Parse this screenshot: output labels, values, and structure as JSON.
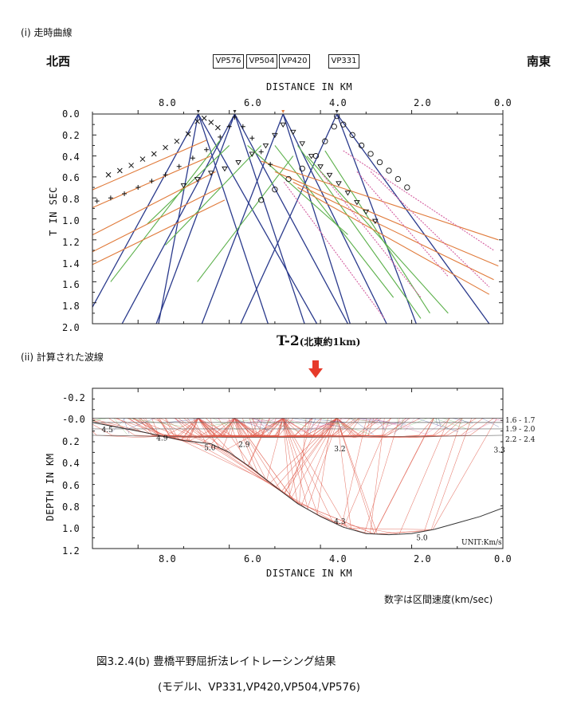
{
  "section1_label": "(i)  走時曲線",
  "section2_label": "(ii)  計算された波線",
  "direction_left": "北西",
  "direction_right": "南東",
  "vp_labels": [
    "VP576",
    "VP504",
    "VP420",
    "VP331"
  ],
  "profile_title": "T-2",
  "profile_subtitle": "(北東約1km)",
  "x_axis_title": "DISTANCE  IN  KM",
  "note_velocity": "数字は区間速度(km/sec)",
  "unit_label": "UNIT:Km/s",
  "figure_caption_line1": "図3.2.4(b)  豊橋平野屈折法レイトレーシング結果",
  "figure_caption_line2": "(モデルⅠ、VP331,VP420,VP504,VP576)",
  "colors": {
    "direct_blue": "#2a3a8c",
    "refr_green": "#5bb04a",
    "refr_orange": "#e07a3a",
    "refr_pink": "#d45fa0",
    "ray_red": "#e05a4a",
    "arrow_red": "#e63a2a"
  },
  "chart_data": [
    {
      "type": "line",
      "title": "",
      "xlabel": "DISTANCE  IN  KM",
      "ylabel": "T  IN  SEC",
      "xlim": [
        9.0,
        0.0
      ],
      "ylim": [
        2.0,
        0.0
      ],
      "xticks": [
        "8.0",
        "6.0",
        "4.0",
        "2.0",
        "0.0"
      ],
      "yticks": [
        "0.0",
        "0.2",
        "0.4",
        "0.6",
        "0.8",
        "1.0",
        "1.2",
        "1.4",
        "1.6",
        "1.8",
        "2.0"
      ],
      "shots_km": [
        6.68,
        5.88,
        4.82,
        3.64
      ],
      "series": [
        {
          "group": "direct",
          "lines": [
            {
              "x": [
                6.68,
                9.2
              ],
              "y": [
                0.0,
                2.0
              ]
            },
            {
              "x": [
                6.68,
                7.55
              ],
              "y": [
                0.0,
                2.0
              ]
            },
            {
              "x": [
                6.68,
                4.08
              ],
              "y": [
                0.0,
                2.0
              ]
            },
            {
              "x": [
                6.68,
                5.15
              ],
              "y": [
                0.0,
                2.0
              ]
            },
            {
              "x": [
                5.88,
                7.6
              ],
              "y": [
                0.0,
                2.0
              ]
            },
            {
              "x": [
                5.88,
                8.35
              ],
              "y": [
                0.0,
                2.0
              ]
            },
            {
              "x": [
                5.88,
                3.4
              ],
              "y": [
                0.0,
                2.0
              ]
            },
            {
              "x": [
                5.88,
                4.35
              ],
              "y": [
                0.0,
                2.0
              ]
            },
            {
              "x": [
                4.82,
                6.6
              ],
              "y": [
                0.0,
                2.0
              ]
            },
            {
              "x": [
                4.82,
                2.55
              ],
              "y": [
                0.0,
                2.0
              ]
            },
            {
              "x": [
                4.82,
                3.35
              ],
              "y": [
                0.0,
                2.0
              ]
            },
            {
              "x": [
                3.64,
                5.75
              ],
              "y": [
                0.0,
                2.0
              ]
            },
            {
              "x": [
                3.64,
                1.9
              ],
              "y": [
                0.0,
                2.0
              ]
            },
            {
              "x": [
                3.64,
                0.3
              ],
              "y": [
                0.0,
                2.0
              ]
            }
          ]
        },
        {
          "group": "refraction",
          "lines": [
            {
              "x": [
                6.2,
                8.6
              ],
              "y": [
                0.25,
                1.6
              ]
            },
            {
              "x": [
                6.0,
                7.8
              ],
              "y": [
                0.3,
                1.05
              ]
            },
            {
              "x": [
                5.3,
                7.4
              ],
              "y": [
                0.3,
                1.25
              ]
            },
            {
              "x": [
                5.6,
                3.4
              ],
              "y": [
                0.3,
                1.15
              ]
            },
            {
              "x": [
                5.0,
                2.4
              ],
              "y": [
                0.3,
                1.75
              ]
            },
            {
              "x": [
                4.5,
                1.8
              ],
              "y": [
                0.3,
                1.95
              ]
            },
            {
              "x": [
                4.6,
                6.7
              ],
              "y": [
                0.4,
                1.6
              ]
            },
            {
              "x": [
                3.9,
                1.6
              ],
              "y": [
                0.35,
                1.9
              ]
            },
            {
              "x": [
                4.3,
                1.2
              ],
              "y": [
                0.4,
                1.9
              ]
            }
          ]
        },
        {
          "group": "refraction",
          "lines": [
            {
              "x": [
                6.5,
                9.3
              ],
              "y": [
                0.25,
                0.78
              ]
            },
            {
              "x": [
                6.4,
                9.3
              ],
              "y": [
                0.4,
                0.95
              ]
            },
            {
              "x": [
                6.3,
                9.3
              ],
              "y": [
                0.55,
                1.22
              ]
            },
            {
              "x": [
                6.2,
                9.3
              ],
              "y": [
                0.7,
                1.38
              ]
            },
            {
              "x": [
                6.1,
                9.3
              ],
              "y": [
                0.82,
                1.5
              ]
            },
            {
              "x": [
                5.3,
                0.1
              ],
              "y": [
                0.45,
                1.2
              ]
            },
            {
              "x": [
                5.0,
                0.1
              ],
              "y": [
                0.55,
                1.45
              ]
            },
            {
              "x": [
                4.6,
                0.2
              ],
              "y": [
                0.65,
                1.58
              ]
            },
            {
              "x": [
                4.5,
                0.3
              ],
              "y": [
                0.7,
                1.72
              ]
            }
          ]
        },
        {
          "group": "refraction",
          "lines": [
            {
              "x": [
                3.5,
                0.2
              ],
              "y": [
                0.35,
                1.3
              ]
            },
            {
              "x": [
                3.2,
                1.2
              ],
              "y": [
                0.55,
                1.55
              ]
            },
            {
              "x": [
                2.9,
                0.3
              ],
              "y": [
                0.55,
                1.65
              ]
            },
            {
              "x": [
                4.0,
                1.8
              ],
              "y": [
                0.55,
                1.75
              ]
            },
            {
              "x": [
                4.8,
                2.6
              ],
              "y": [
                0.65,
                1.95
              ]
            }
          ]
        },
        {
          "group": "observed",
          "lines": [
            {
              "x": [
                8.65,
                8.4,
                8.15,
                7.9,
                7.65,
                7.4,
                7.15,
                6.9,
                6.7,
                6.55,
                6.4,
                6.25
              ],
              "y": [
                0.58,
                0.54,
                0.49,
                0.43,
                0.38,
                0.32,
                0.26,
                0.19,
                0.07,
                0.04,
                0.08,
                0.13
              ]
            },
            {
              "x": [
                8.9,
                8.6,
                8.3,
                8.0,
                7.7,
                7.4,
                7.1,
                6.8,
                6.5,
                6.2,
                6.0,
                5.88,
                5.7,
                5.5,
                5.3,
                5.1
              ],
              "y": [
                0.83,
                0.8,
                0.76,
                0.7,
                0.64,
                0.58,
                0.5,
                0.42,
                0.34,
                0.22,
                0.12,
                0.03,
                0.12,
                0.23,
                0.36,
                0.48
              ]
            },
            {
              "x": [
                7.0,
                6.7,
                6.4,
                6.1,
                5.8,
                5.5,
                5.2,
                5.0,
                4.82,
                4.6,
                4.4,
                4.2,
                4.0,
                3.8,
                3.6,
                3.4,
                3.2,
                3.0,
                2.8
              ],
              "y": [
                0.68,
                0.62,
                0.56,
                0.52,
                0.46,
                0.38,
                0.3,
                0.2,
                0.1,
                0.17,
                0.28,
                0.4,
                0.5,
                0.58,
                0.66,
                0.75,
                0.84,
                0.93,
                1.02
              ]
            },
            {
              "x": [
                5.3,
                5.0,
                4.7,
                4.4,
                4.1,
                3.9,
                3.7,
                3.64,
                3.5,
                3.3,
                3.1,
                2.9,
                2.7,
                2.5,
                2.3,
                2.1
              ],
              "y": [
                0.82,
                0.72,
                0.62,
                0.52,
                0.4,
                0.26,
                0.12,
                0.02,
                0.1,
                0.2,
                0.3,
                0.38,
                0.46,
                0.54,
                0.62,
                0.7
              ]
            }
          ]
        }
      ]
    },
    {
      "type": "line",
      "title": "",
      "xlabel": "DISTANCE  IN  KM",
      "ylabel": "DEPTH  IN  KM",
      "xlim": [
        9.0,
        0.0
      ],
      "ylim": [
        1.2,
        -0.3
      ],
      "xticks": [
        "8.0",
        "6.0",
        "4.0",
        "2.0",
        "0.0"
      ],
      "yticks": [
        "-0.2",
        "-0.0",
        "0.2",
        "0.4",
        "0.6",
        "0.8",
        "1.0",
        "1.2"
      ],
      "interfaces": [
        {
          "name": "layer1-base",
          "x": [
            9.0,
            0.0
          ],
          "y": [
            0.02,
            0.02
          ]
        },
        {
          "name": "layer2-base",
          "x": [
            9.0,
            0.0
          ],
          "y": [
            0.08,
            0.08
          ]
        },
        {
          "name": "layer3-base",
          "x": [
            9.0,
            7.5,
            6.0,
            4.5,
            3.0,
            1.5,
            0.0
          ],
          "y": [
            0.14,
            0.15,
            0.16,
            0.16,
            0.15,
            0.15,
            0.14
          ]
        },
        {
          "name": "basement",
          "x": [
            9.0,
            8.0,
            7.0,
            6.4,
            6.0,
            5.5,
            5.0,
            4.5,
            4.0,
            3.5,
            3.0,
            2.5,
            2.0,
            1.5,
            1.0,
            0.5,
            0.0
          ],
          "y": [
            0.02,
            0.1,
            0.19,
            0.22,
            0.3,
            0.45,
            0.62,
            0.78,
            0.9,
            1.0,
            1.06,
            1.07,
            1.06,
            1.02,
            0.96,
            0.9,
            0.82
          ]
        }
      ],
      "velocity_labels": [
        {
          "text": "4.5",
          "x": 8.8,
          "y": 0.11
        },
        {
          "text": "4.9",
          "x": 7.6,
          "y": 0.19
        },
        {
          "text": "5.0",
          "x": 6.55,
          "y": 0.28
        },
        {
          "text": "2.9",
          "x": 5.8,
          "y": 0.25
        },
        {
          "text": "3.2",
          "x": 3.7,
          "y": 0.29
        },
        {
          "text": "3.3",
          "x": 0.2,
          "y": 0.3
        },
        {
          "text": "4.3",
          "x": 3.7,
          "y": 0.97
        },
        {
          "text": "5.0",
          "x": 1.9,
          "y": 1.12
        }
      ],
      "layer_velocity_ranges": [
        "1.6 - 1.7",
        "1.9 - 2.0",
        "2.2 - 2.4"
      ]
    }
  ]
}
